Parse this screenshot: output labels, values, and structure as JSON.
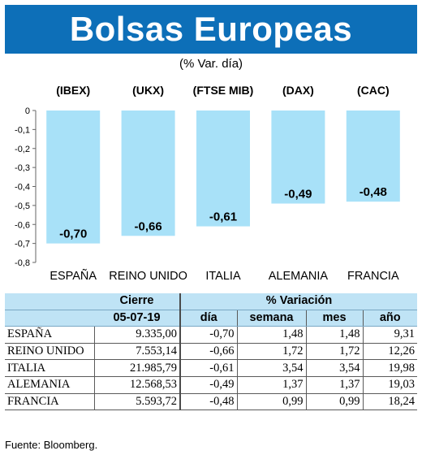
{
  "header": {
    "title": "Bolsas Europeas",
    "subtitle": "(% Var. día)"
  },
  "chart_data": {
    "type": "bar",
    "categories": [
      "ESPAÑA",
      "REINO UNIDO",
      "ITALIA",
      "ALEMANIA",
      "FRANCIA"
    ],
    "index_labels": [
      "(IBEX)",
      "(UKX)",
      "(FTSE MIB)",
      "(DAX)",
      "(CAC)"
    ],
    "values": [
      -0.7,
      -0.66,
      -0.61,
      -0.49,
      -0.48
    ],
    "value_labels": [
      "-0,70",
      "-0,66",
      "-0,61",
      "-0,49",
      "-0,48"
    ],
    "yticks": [
      0,
      -0.1,
      -0.2,
      -0.3,
      -0.4,
      -0.5,
      -0.6,
      -0.7,
      -0.8
    ],
    "ytick_labels": [
      "0",
      "-0,1",
      "-0,2",
      "-0,3",
      "-0,4",
      "-0,5",
      "-0,6",
      "-0,7",
      "-0,8"
    ],
    "ylim": [
      -0.8,
      0
    ],
    "bar_color": "#a8e1f8",
    "grid": false
  },
  "table": {
    "group_headers": {
      "close": "Cierre",
      "variation": "% Variación"
    },
    "sub_headers": {
      "date": "05-07-19",
      "day": "día",
      "week": "semana",
      "month": "mes",
      "year": "año"
    },
    "rows": [
      {
        "country": "ESPAÑA",
        "close": "9.335,00",
        "day": "-0,70",
        "week": "1,48",
        "month": "1,48",
        "year": "9,31"
      },
      {
        "country": "REINO UNIDO",
        "close": "7.553,14",
        "day": "-0,66",
        "week": "1,72",
        "month": "1,72",
        "year": "12,26"
      },
      {
        "country": "ITALIA",
        "close": "21.985,79",
        "day": "-0,61",
        "week": "3,54",
        "month": "3,54",
        "year": "19,98"
      },
      {
        "country": "ALEMANIA",
        "close": "12.568,53",
        "day": "-0,49",
        "week": "1,37",
        "month": "1,37",
        "year": "19,03"
      },
      {
        "country": "FRANCIA",
        "close": "5.593,72",
        "day": "-0,48",
        "week": "0,99",
        "month": "0,99",
        "year": "18,24"
      }
    ]
  },
  "footer": {
    "source": "Fuente: Bloomberg."
  }
}
